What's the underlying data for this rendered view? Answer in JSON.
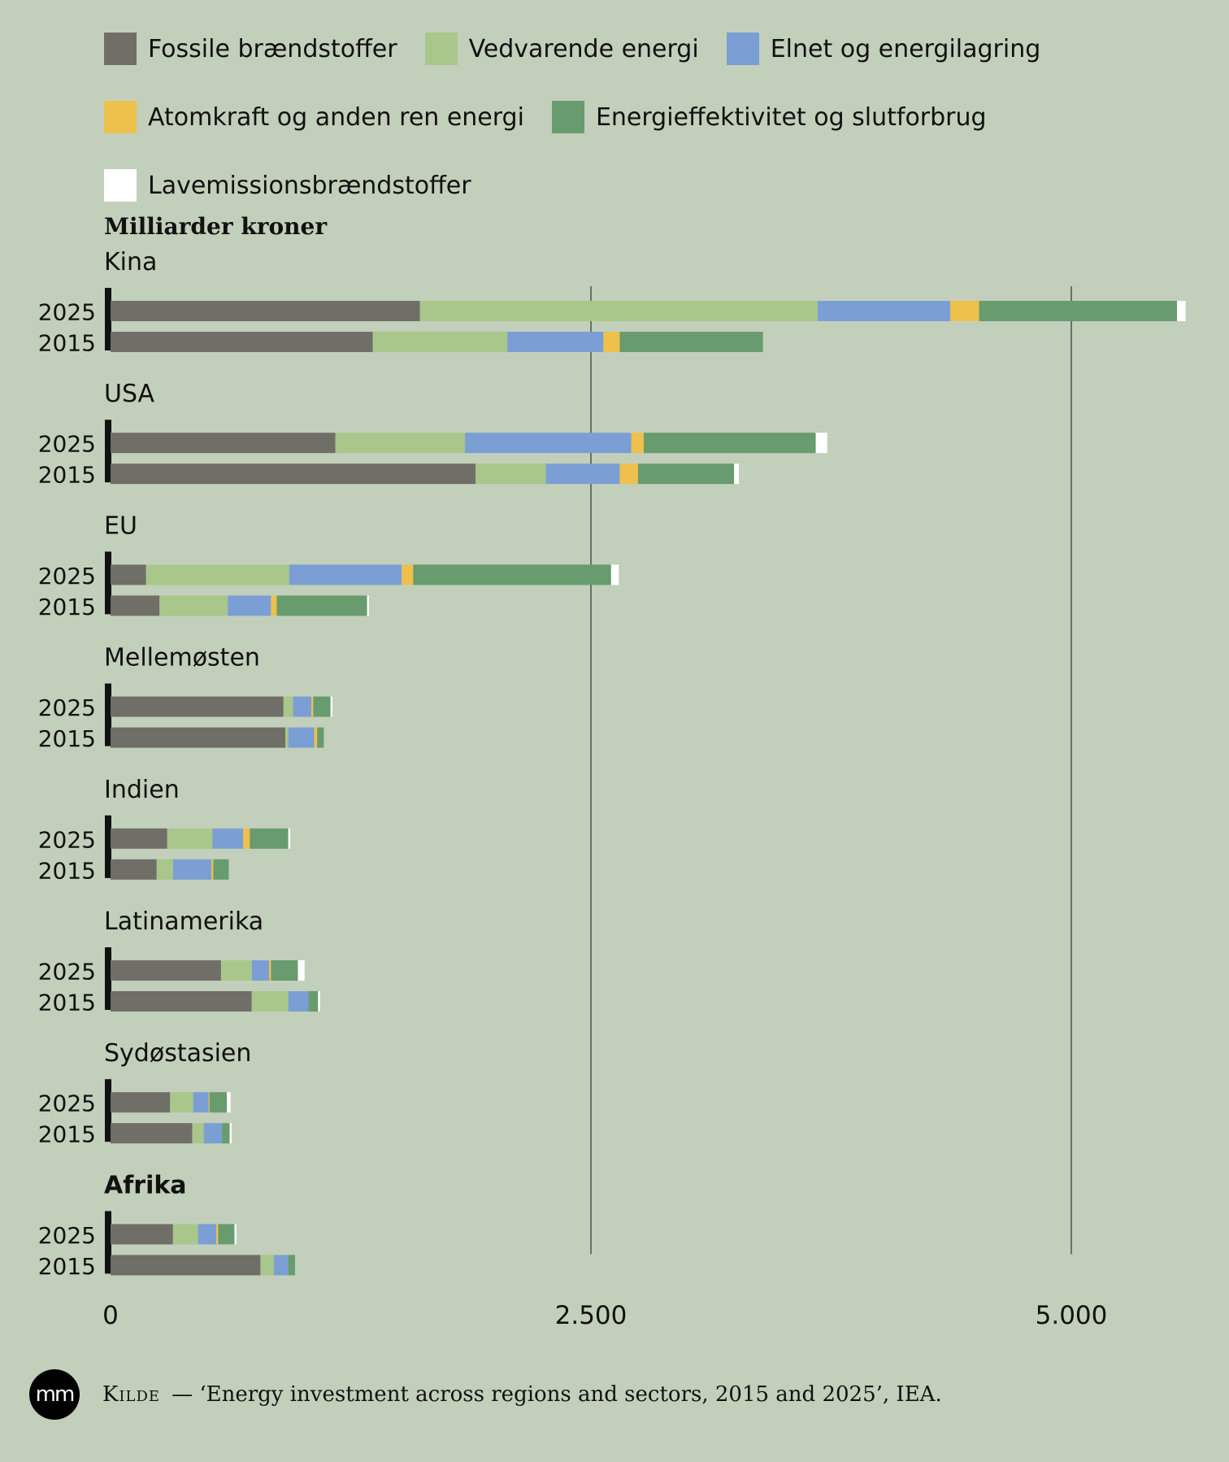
{
  "chart_data": {
    "type": "bar",
    "orientation": "horizontal",
    "stacked": true,
    "ylabel": "Milliarder kroner",
    "xlim": [
      0,
      5600
    ],
    "xticks": [
      0,
      2500,
      5000
    ],
    "xtick_labels": [
      "0",
      "2.500",
      "5.000"
    ],
    "grid": true,
    "legend_position": "top",
    "series": [
      {
        "name": "Fossile brændstoffer",
        "color": "#6f6f68"
      },
      {
        "name": "Vedvarende energi",
        "color": "#a9c78a"
      },
      {
        "name": "Elnet og energilagring",
        "color": "#7b9fd4"
      },
      {
        "name": "Atomkraft og anden ren energi",
        "color": "#eec04c"
      },
      {
        "name": "Energieffektivitet og slutforbrug",
        "color": "#689b6e"
      },
      {
        "name": "Lavemissionsbrændstoffer",
        "color": "#ffffff"
      }
    ],
    "groups": [
      {
        "name": "Kina",
        "bold": false,
        "rows": [
          {
            "year": "2025",
            "values": [
              1610,
              2070,
              690,
              150,
              1030,
              45
            ]
          },
          {
            "year": "2015",
            "values": [
              1365,
              700,
              500,
              85,
              745,
              0
            ]
          }
        ]
      },
      {
        "name": "USA",
        "bold": false,
        "rows": [
          {
            "year": "2025",
            "values": [
              1170,
              675,
              865,
              65,
              895,
              60
            ]
          },
          {
            "year": "2015",
            "values": [
              1900,
              365,
              385,
              95,
              500,
              25
            ]
          }
        ]
      },
      {
        "name": "EU",
        "bold": false,
        "rows": [
          {
            "year": "2025",
            "values": [
              185,
              745,
              585,
              60,
              1030,
              40
            ]
          },
          {
            "year": "2015",
            "values": [
              255,
              355,
              225,
              30,
              470,
              10
            ]
          }
        ]
      },
      {
        "name": "Mellemøsten",
        "bold": false,
        "rows": [
          {
            "year": "2025",
            "values": [
              900,
              50,
              95,
              10,
              90,
              10
            ]
          },
          {
            "year": "2015",
            "values": [
              910,
              15,
              135,
              15,
              35,
              0
            ]
          }
        ]
      },
      {
        "name": "Indien",
        "bold": false,
        "rows": [
          {
            "year": "2025",
            "values": [
              295,
              235,
              160,
              35,
              200,
              10
            ]
          },
          {
            "year": "2015",
            "values": [
              240,
              85,
              200,
              10,
              80,
              0
            ]
          }
        ]
      },
      {
        "name": "Latinamerika",
        "bold": false,
        "rows": [
          {
            "year": "2025",
            "values": [
              575,
              160,
              90,
              10,
              140,
              35
            ]
          },
          {
            "year": "2015",
            "values": [
              735,
              190,
              105,
              0,
              50,
              10
            ]
          }
        ]
      },
      {
        "name": "Sydøstasien",
        "bold": false,
        "rows": [
          {
            "year": "2025",
            "values": [
              310,
              120,
              80,
              5,
              90,
              20
            ]
          },
          {
            "year": "2015",
            "values": [
              425,
              60,
              95,
              0,
              40,
              10
            ]
          }
        ]
      },
      {
        "name": "Afrika",
        "bold": true,
        "rows": [
          {
            "year": "2025",
            "values": [
              325,
              130,
              95,
              10,
              85,
              10
            ]
          },
          {
            "year": "2015",
            "values": [
              780,
              70,
              75,
              0,
              35,
              0
            ]
          }
        ]
      }
    ]
  },
  "source": {
    "logo": "mm",
    "label": "Kilde",
    "dash": "—",
    "title": "‘Energy investment across regions and sectors, 2015 and 2025’",
    "publisher": ", IEA."
  }
}
